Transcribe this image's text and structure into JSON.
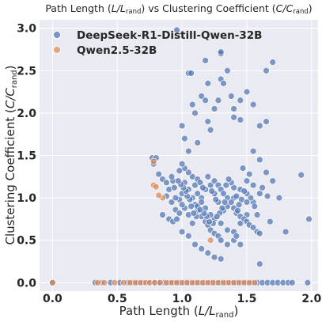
{
  "chart_data": {
    "type": "scatter",
    "title": "Path Length (L/L_rand) vs Clustering Coefficient (C/C_rand)",
    "title_parts": {
      "prefix": "Path Length (",
      "x_var": "L/L",
      "x_sub": "rand",
      "middle": ") vs Clustering Coefficient (",
      "y_var": "C/C",
      "y_sub": "rand",
      "suffix": ")"
    },
    "xlabel_parts": {
      "prefix": "Path Length (",
      "var": "L/L",
      "sub": "rand",
      "suffix": ")"
    },
    "ylabel_parts": {
      "prefix": "Clustering Coefficient (",
      "var": "C/C",
      "sub": "rand",
      "suffix": ")"
    },
    "xlim": [
      -0.1,
      2.05
    ],
    "ylim": [
      -0.1,
      3.1
    ],
    "xticks": [
      "0.0",
      "0.5",
      "1.0",
      "1.5",
      "2.0"
    ],
    "yticks": [
      "0.0",
      "0.5",
      "1.0",
      "1.5",
      "2.0",
      "2.5",
      "3.0"
    ],
    "grid": true,
    "legend_position": "top-left",
    "series": [
      {
        "name": "DeepSeek-R1-Distill-Qwen-32B",
        "color": "#4c72b0",
        "points": [
          [
            0.77,
            1.47
          ],
          [
            0.8,
            1.47
          ],
          [
            0.78,
            1.4
          ],
          [
            0.82,
            1.28
          ],
          [
            0.85,
            1.22
          ],
          [
            0.88,
            1.18
          ],
          [
            0.9,
            1.1
          ],
          [
            0.88,
            1.02
          ],
          [
            0.92,
            0.95
          ],
          [
            0.95,
            0.86
          ],
          [
            0.85,
            0.8
          ],
          [
            0.9,
            0.75
          ],
          [
            0.93,
            0.72
          ],
          [
            0.98,
            0.98
          ],
          [
            1.0,
            1.05
          ],
          [
            1.02,
            1.18
          ],
          [
            1.05,
            1.1
          ],
          [
            1.08,
            1.0
          ],
          [
            1.1,
            0.92
          ],
          [
            1.12,
            0.85
          ],
          [
            1.15,
            0.78
          ],
          [
            1.18,
            0.72
          ],
          [
            1.2,
            0.68
          ],
          [
            1.22,
            0.62
          ],
          [
            1.25,
            0.58
          ],
          [
            1.28,
            0.55
          ],
          [
            1.3,
            0.5
          ],
          [
            1.0,
            0.6
          ],
          [
            1.05,
            0.55
          ],
          [
            1.1,
            0.45
          ],
          [
            1.15,
            0.4
          ],
          [
            1.2,
            0.35
          ],
          [
            1.25,
            0.3
          ],
          [
            1.3,
            0.28
          ],
          [
            1.35,
            0.45
          ],
          [
            1.4,
            0.6
          ],
          [
            1.45,
            0.7
          ],
          [
            1.5,
            0.8
          ],
          [
            1.55,
            0.95
          ],
          [
            1.6,
            1.05
          ],
          [
            1.55,
            1.15
          ],
          [
            1.5,
            1.2
          ],
          [
            1.45,
            1.1
          ],
          [
            1.4,
            1.0
          ],
          [
            1.35,
            0.9
          ],
          [
            1.32,
            0.85
          ],
          [
            1.28,
            0.95
          ],
          [
            1.25,
            1.05
          ],
          [
            1.22,
            1.15
          ],
          [
            1.2,
            1.25
          ],
          [
            1.18,
            1.1
          ],
          [
            1.15,
            1.0
          ],
          [
            1.12,
            0.9
          ],
          [
            1.08,
            1.25
          ],
          [
            1.05,
            1.3
          ],
          [
            1.02,
            1.35
          ],
          [
            1.0,
            1.4
          ],
          [
            0.98,
            1.32
          ],
          [
            1.0,
            1.85
          ],
          [
            1.02,
            1.7
          ],
          [
            1.05,
            1.55
          ],
          [
            1.08,
            2.1
          ],
          [
            1.1,
            2.0
          ],
          [
            1.12,
            1.65
          ],
          [
            1.15,
            2.2
          ],
          [
            1.18,
            2.15
          ],
          [
            1.2,
            1.9
          ],
          [
            1.22,
            1.8
          ],
          [
            1.25,
            2.05
          ],
          [
            1.28,
            2.15
          ],
          [
            1.3,
            2.4
          ],
          [
            1.32,
            2.35
          ],
          [
            1.35,
            2.5
          ],
          [
            1.38,
            2.2
          ],
          [
            1.4,
            1.95
          ],
          [
            1.45,
            2.15
          ],
          [
            1.5,
            2.25
          ],
          [
            1.55,
            2.1
          ],
          [
            1.6,
            1.85
          ],
          [
            1.65,
            1.9
          ],
          [
            1.7,
            2.6
          ],
          [
            1.65,
            2.5
          ],
          [
            1.3,
            2.7
          ],
          [
            1.3,
            2.72
          ],
          [
            0.96,
            2.98
          ],
          [
            1.05,
            2.47
          ],
          [
            1.07,
            2.47
          ],
          [
            1.18,
            2.62
          ],
          [
            1.2,
            2.35
          ],
          [
            1.4,
            2.05
          ],
          [
            1.45,
            1.92
          ],
          [
            1.55,
            1.55
          ],
          [
            1.6,
            1.45
          ],
          [
            1.65,
            1.3
          ],
          [
            1.7,
            1.2
          ],
          [
            1.75,
            1.0
          ],
          [
            1.8,
            0.6
          ],
          [
            1.92,
            1.27
          ],
          [
            1.98,
            0.75
          ],
          [
            1.6,
            0.22
          ],
          [
            1.45,
            0.45
          ],
          [
            1.4,
            0.5
          ],
          [
            1.35,
            0.62
          ],
          [
            1.3,
            0.7
          ],
          [
            1.25,
            0.75
          ],
          [
            1.22,
            0.8
          ],
          [
            1.18,
            0.88
          ],
          [
            1.15,
            0.95
          ],
          [
            1.12,
            1.05
          ],
          [
            1.1,
            1.15
          ],
          [
            1.08,
            0.7
          ],
          [
            1.05,
            0.8
          ],
          [
            1.02,
            0.88
          ],
          [
            1.0,
            0.92
          ],
          [
            0.98,
            0.82
          ],
          [
            0.96,
            0.75
          ],
          [
            0.95,
            1.0
          ],
          [
            0.94,
            1.12
          ],
          [
            0.93,
            1.2
          ],
          [
            0.92,
            1.25
          ],
          [
            1.25,
            1.2
          ],
          [
            1.28,
            1.15
          ],
          [
            1.3,
            1.1
          ],
          [
            1.32,
            1.05
          ],
          [
            1.35,
            1.0
          ],
          [
            1.38,
            0.95
          ],
          [
            1.4,
            0.88
          ],
          [
            1.42,
            0.82
          ],
          [
            1.45,
            0.78
          ],
          [
            1.48,
            0.75
          ],
          [
            1.5,
            0.72
          ],
          [
            1.52,
            0.68
          ],
          [
            1.55,
            0.65
          ],
          [
            1.58,
            0.6
          ],
          [
            1.6,
            0.58
          ],
          [
            1.58,
            0.8
          ],
          [
            1.56,
            0.9
          ],
          [
            1.53,
            1.0
          ],
          [
            1.5,
            1.05
          ],
          [
            1.48,
            1.08
          ],
          [
            1.46,
            0.98
          ],
          [
            1.44,
            0.92
          ],
          [
            1.42,
            1.02
          ],
          [
            1.4,
            1.12
          ],
          [
            1.38,
            1.18
          ],
          [
            1.36,
            1.22
          ],
          [
            1.34,
            1.15
          ],
          [
            1.33,
            0.95
          ],
          [
            1.31,
            0.88
          ],
          [
            1.29,
            0.82
          ],
          [
            1.27,
            0.78
          ],
          [
            1.24,
            0.7
          ],
          [
            1.21,
            0.72
          ],
          [
            1.19,
            0.78
          ],
          [
            1.17,
            0.82
          ],
          [
            1.14,
            0.86
          ],
          [
            1.11,
            0.78
          ],
          [
            1.09,
            0.82
          ],
          [
            1.07,
            0.9
          ],
          [
            1.06,
            0.98
          ],
          [
            1.04,
            1.02
          ],
          [
            1.03,
            1.08
          ],
          [
            1.01,
            1.12
          ],
          [
            0.99,
            1.16
          ],
          [
            0.97,
            1.2
          ],
          [
            1.12,
            1.22
          ],
          [
            1.14,
            1.18
          ],
          [
            1.16,
            1.12
          ],
          [
            1.23,
            1.08
          ],
          [
            1.26,
            0.98
          ],
          [
            1.42,
            0.55
          ],
          [
            1.5,
            0.95
          ],
          [
            1.62,
            1.12
          ],
          [
            1.66,
            1.02
          ],
          [
            1.68,
            0.72
          ],
          [
            1.52,
            1.28
          ],
          [
            1.47,
            1.35
          ],
          [
            1.43,
            0.85
          ],
          [
            0.0,
            0.0
          ],
          [
            0.33,
            0.0
          ],
          [
            0.38,
            0.0
          ],
          [
            0.45,
            0.0
          ],
          [
            0.52,
            0.0
          ],
          [
            0.58,
            0.0
          ],
          [
            0.62,
            0.0
          ],
          [
            0.66,
            0.0
          ],
          [
            0.7,
            0.0
          ],
          [
            0.74,
            0.0
          ],
          [
            0.78,
            0.0
          ],
          [
            0.82,
            0.0
          ],
          [
            0.86,
            0.0
          ],
          [
            0.9,
            0.0
          ],
          [
            0.94,
            0.0
          ],
          [
            0.98,
            0.0
          ],
          [
            1.02,
            0.0
          ],
          [
            1.06,
            0.0
          ],
          [
            1.1,
            0.0
          ],
          [
            1.14,
            0.0
          ],
          [
            1.18,
            0.0
          ],
          [
            1.22,
            0.0
          ],
          [
            1.26,
            0.0
          ],
          [
            1.3,
            0.0
          ],
          [
            1.34,
            0.0
          ],
          [
            1.38,
            0.0
          ],
          [
            1.42,
            0.0
          ],
          [
            1.46,
            0.0
          ],
          [
            1.5,
            0.0
          ],
          [
            1.54,
            0.0
          ],
          [
            1.58,
            0.0
          ],
          [
            1.62,
            0.0
          ],
          [
            1.66,
            0.0
          ],
          [
            1.7,
            0.0
          ],
          [
            1.74,
            0.0
          ],
          [
            1.78,
            0.0
          ],
          [
            1.82,
            0.0
          ],
          [
            1.85,
            0.0
          ],
          [
            1.97,
            0.0
          ]
        ]
      },
      {
        "name": "Qwen2.5-32B",
        "color": "#dd8452",
        "points": [
          [
            0.78,
            1.43
          ],
          [
            0.78,
            1.15
          ],
          [
            0.8,
            1.13
          ],
          [
            0.85,
            1.0
          ],
          [
            0.82,
            1.03
          ],
          [
            1.22,
            0.5
          ],
          [
            0.0,
            0.0
          ],
          [
            0.35,
            0.0
          ],
          [
            0.4,
            0.0
          ],
          [
            0.48,
            0.0
          ],
          [
            0.55,
            0.0
          ],
          [
            0.6,
            0.0
          ],
          [
            0.64,
            0.0
          ],
          [
            0.68,
            0.0
          ],
          [
            0.72,
            0.0
          ],
          [
            0.75,
            0.0
          ],
          [
            0.79,
            0.0
          ],
          [
            0.83,
            0.0
          ],
          [
            0.88,
            0.0
          ],
          [
            0.92,
            0.0
          ],
          [
            0.96,
            0.0
          ],
          [
            1.0,
            0.0
          ],
          [
            1.04,
            0.0
          ],
          [
            1.08,
            0.0
          ],
          [
            1.12,
            0.0
          ],
          [
            1.16,
            0.0
          ],
          [
            1.2,
            0.0
          ],
          [
            1.24,
            0.0
          ],
          [
            1.28,
            0.0
          ],
          [
            1.32,
            0.0
          ],
          [
            1.36,
            0.0
          ],
          [
            1.4,
            0.0
          ],
          [
            1.44,
            0.0
          ],
          [
            1.48,
            0.0
          ],
          [
            1.52,
            0.0
          ],
          [
            1.56,
            0.0
          ]
        ]
      }
    ]
  }
}
